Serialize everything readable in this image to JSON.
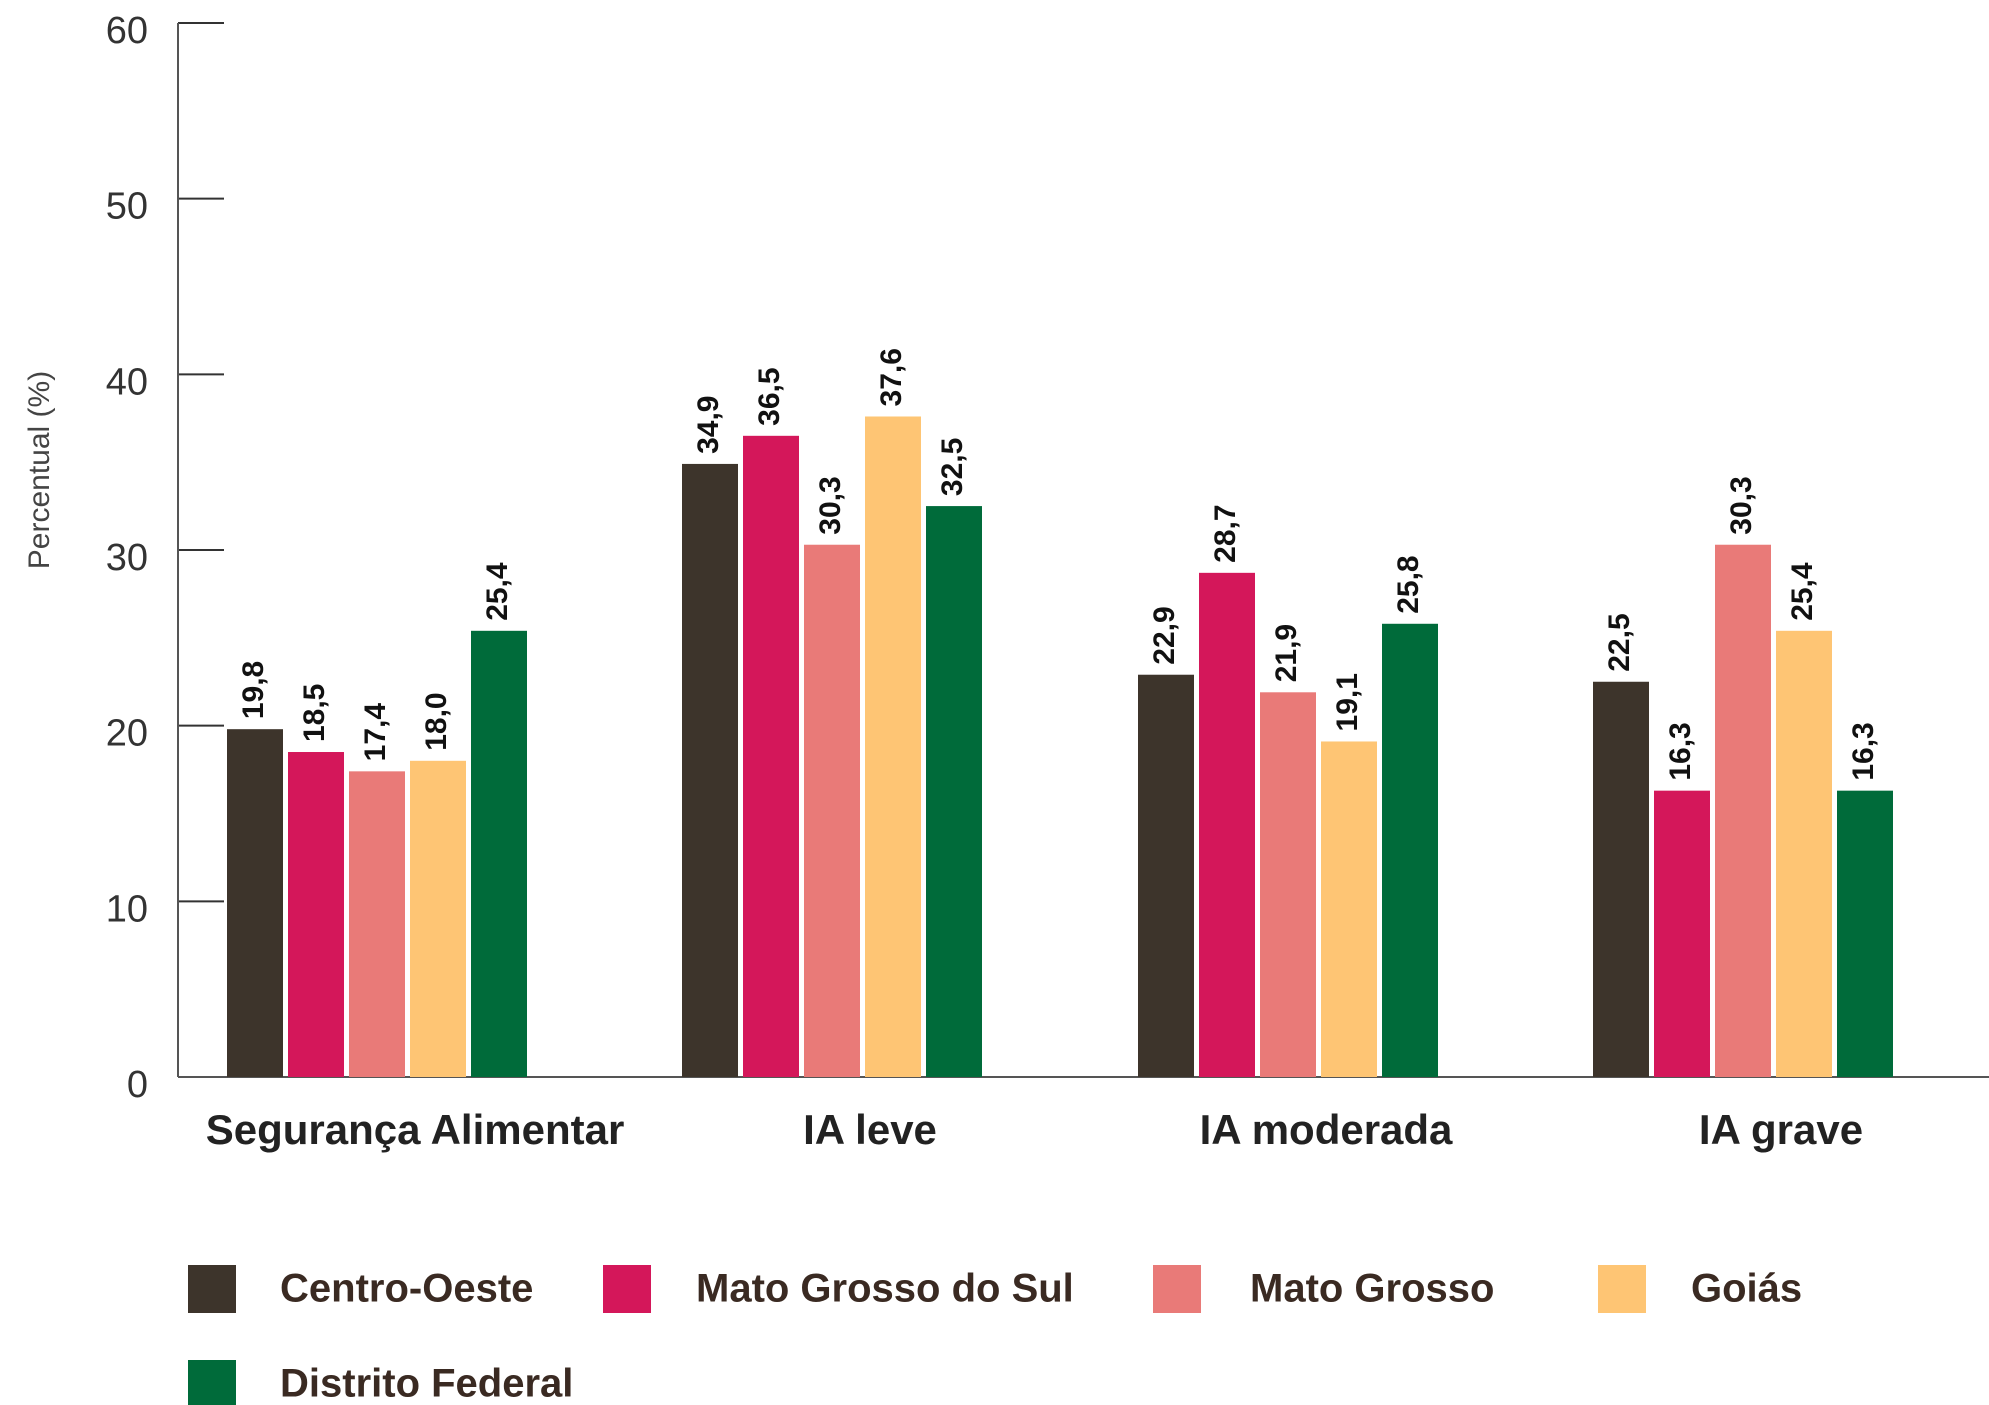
{
  "chart_data": {
    "type": "bar",
    "y_label": "Percentual (%)",
    "categories": [
      "Segurança Alimentar",
      "IA leve",
      "IA moderada",
      "IA grave"
    ],
    "series": [
      {
        "name": "Centro-Oeste",
        "color": "#3d342b",
        "values": [
          19.8,
          34.9,
          22.9,
          22.5
        ],
        "value_labels": [
          "19,8",
          "34,9",
          "22,9",
          "22,5"
        ]
      },
      {
        "name": "Mato Grosso do Sul",
        "color": "#d4175a",
        "values": [
          18.5,
          36.5,
          28.7,
          16.3
        ],
        "value_labels": [
          "18,5",
          "36,5",
          "28,7",
          "16,3"
        ]
      },
      {
        "name": "Mato Grosso",
        "color": "#e97a78",
        "values": [
          17.4,
          30.3,
          21.9,
          30.3
        ],
        "value_labels": [
          "17,4",
          "30,3",
          "21,9",
          "30,3"
        ]
      },
      {
        "name": "Goiás",
        "color": "#fec574",
        "values": [
          18.0,
          37.6,
          19.1,
          25.4
        ],
        "value_labels": [
          "18,0",
          "37,6",
          "19,1",
          "25,4"
        ]
      },
      {
        "name": "Distrito Federal",
        "color": "#006b3a",
        "values": [
          25.4,
          32.5,
          25.8,
          16.3
        ],
        "value_labels": [
          "25,4",
          "32,5",
          "25,8",
          "16,3"
        ]
      }
    ],
    "ylim": [
      0,
      60
    ],
    "yticks": [
      0,
      10,
      20,
      30,
      40,
      50,
      60
    ]
  }
}
